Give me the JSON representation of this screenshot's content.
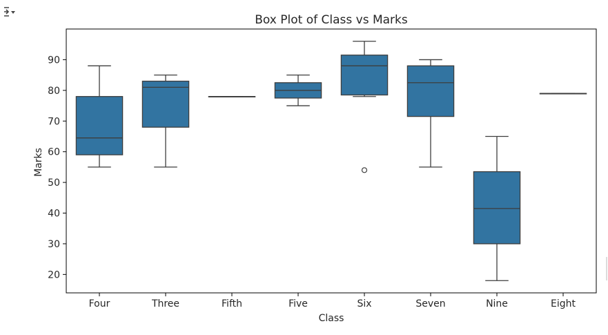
{
  "cell": {
    "toggle_icon": "collapse-output-icon"
  },
  "colors": {
    "box_fill": "#3274a1",
    "line": "#3d3d3d",
    "axes": "#000000",
    "text": "#262626"
  },
  "chart_data": {
    "type": "box",
    "title": "Box Plot of Class vs Marks",
    "xlabel": "Class",
    "ylabel": "Marks",
    "ylim": [
      14,
      100
    ],
    "yticks": [
      20,
      30,
      40,
      50,
      60,
      70,
      80,
      90
    ],
    "grid": false,
    "categories": [
      "Four",
      "Three",
      "Fifth",
      "Five",
      "Six",
      "Seven",
      "Nine",
      "Eight"
    ],
    "boxes": [
      {
        "category": "Four",
        "whisker_low": 55,
        "q1": 59,
        "median": 64.5,
        "q3": 78,
        "whisker_high": 88,
        "outliers": []
      },
      {
        "category": "Three",
        "whisker_low": 55,
        "q1": 68,
        "median": 81,
        "q3": 83,
        "whisker_high": 85,
        "outliers": []
      },
      {
        "category": "Fifth",
        "whisker_low": 78,
        "q1": 78,
        "median": 78,
        "q3": 78,
        "whisker_high": 78,
        "outliers": []
      },
      {
        "category": "Five",
        "whisker_low": 75,
        "q1": 77.5,
        "median": 80,
        "q3": 82.5,
        "whisker_high": 85,
        "outliers": []
      },
      {
        "category": "Six",
        "whisker_low": 78,
        "q1": 78.5,
        "median": 88,
        "q3": 91.5,
        "whisker_high": 96,
        "outliers": [
          54
        ]
      },
      {
        "category": "Seven",
        "whisker_low": 55,
        "q1": 71.5,
        "median": 82.5,
        "q3": 88,
        "whisker_high": 90,
        "outliers": []
      },
      {
        "category": "Nine",
        "whisker_low": 18,
        "q1": 30,
        "median": 41.5,
        "q3": 53.5,
        "whisker_high": 65,
        "outliers": []
      },
      {
        "category": "Eight",
        "whisker_low": 79,
        "q1": 79,
        "median": 79,
        "q3": 79,
        "whisker_high": 79,
        "outliers": []
      }
    ]
  }
}
